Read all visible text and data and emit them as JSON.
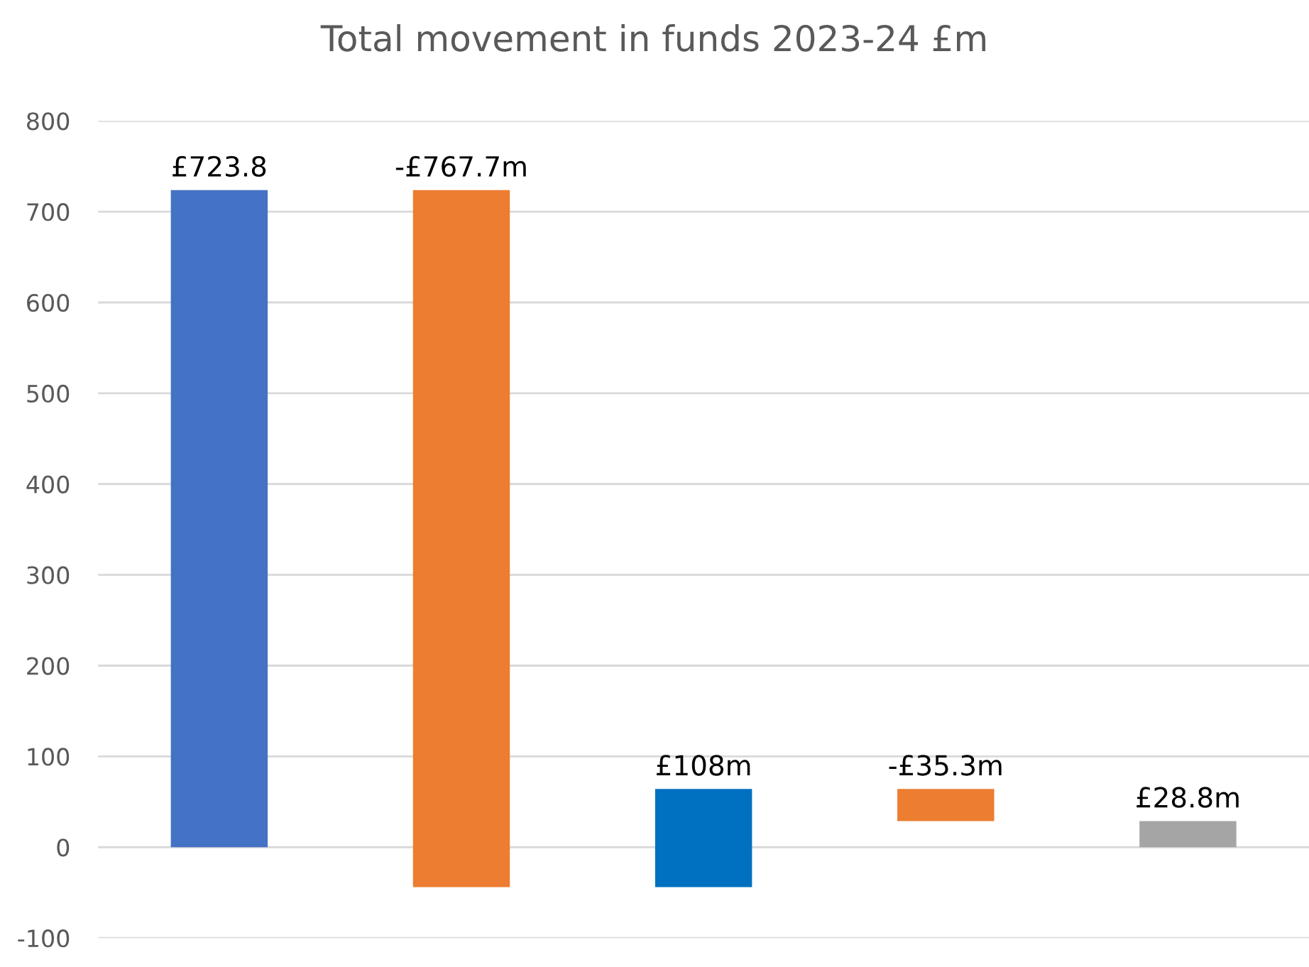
{
  "chart_data": {
    "type": "bar",
    "title": "Total movement in funds 2023-24 £m",
    "categories": [
      null,
      null,
      null,
      null,
      null
    ],
    "values": [
      723.8,
      -767.7,
      108,
      -35.3,
      28.8
    ],
    "base": [
      0,
      723.8,
      -43.9,
      64.1,
      0
    ],
    "colors": [
      "#4472c4",
      "#ed7d31",
      "#0070c0",
      "#ed7d31",
      "#a5a5a5"
    ],
    "value_labels": [
      "£723.8",
      "-£767.7m",
      "£108m",
      "-£35.3m",
      "£28.8m"
    ],
    "ylim": [
      -100,
      800
    ],
    "yticks": [
      -100,
      0,
      100,
      200,
      300,
      400,
      500,
      600,
      700,
      800
    ],
    "grid": "y",
    "legend": false
  }
}
